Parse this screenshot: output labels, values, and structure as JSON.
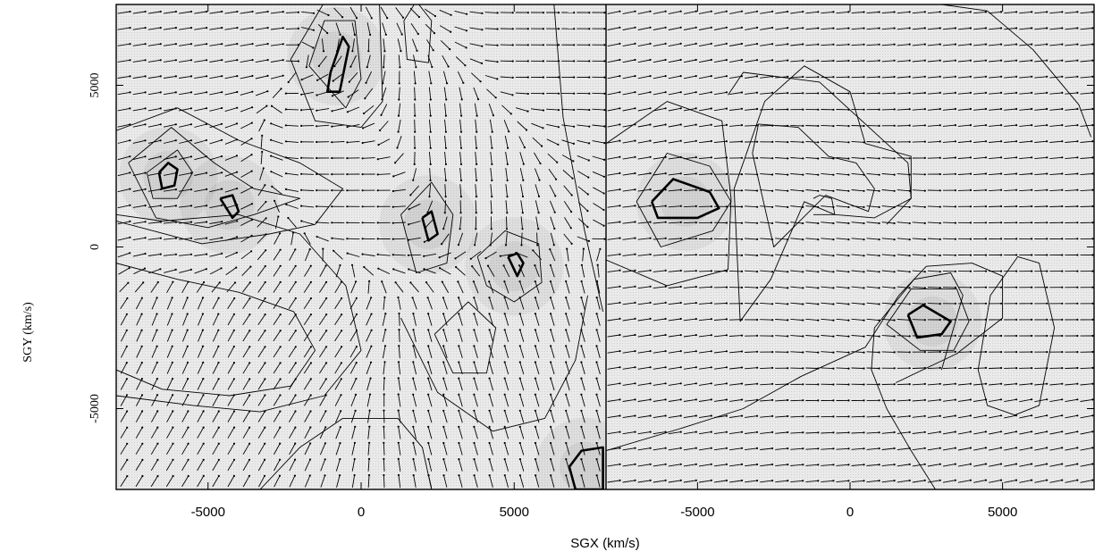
{
  "chart_data": {
    "type": "vector-field-contour",
    "xlabel": "SGX (km/s)",
    "ylabel": "SGY (km/s)",
    "shared_ylim": [
      -7500,
      7500
    ],
    "y_ticks": [
      -5000,
      0,
      5000
    ],
    "y_tick_labels": [
      "-5000",
      "0",
      "5000"
    ],
    "panels": [
      {
        "name": "left",
        "xlim": [
          -8000,
          8000
        ],
        "x_ticks": [
          -5000,
          0,
          5000
        ],
        "x_tick_labels": [
          "-5000",
          "0",
          "5000"
        ],
        "peaks": [
          {
            "x": -6300,
            "y": 2200
          },
          {
            "x": -4300,
            "y": 1300
          },
          {
            "x": -800,
            "y": 5900
          },
          {
            "x": 2200,
            "y": 700
          },
          {
            "x": 5000,
            "y": -600
          },
          {
            "x": 7300,
            "y": -6800
          }
        ],
        "contours": [
          {
            "x": [
              -6600,
              -6300,
              -6000,
              -6100,
              -6500,
              -6600
            ],
            "y": [
              2300,
              2600,
              2400,
              1900,
              1800,
              2300
            ],
            "bold": true
          },
          {
            "x": [
              -4600,
              -4200,
              -4000,
              -4200,
              -4600
            ],
            "y": [
              1500,
              1600,
              1100,
              900,
              1500
            ],
            "bold": true
          },
          {
            "x": [
              -1000,
              -600,
              -400,
              -700,
              -1100,
              -1000
            ],
            "y": [
              5400,
              6500,
              6200,
              4800,
              4800,
              5400
            ],
            "bold": true
          },
          {
            "x": [
              2000,
              2300,
              2500,
              2200,
              2000
            ],
            "y": [
              900,
              1100,
              400,
              200,
              900
            ],
            "bold": true
          },
          {
            "x": [
              4800,
              5100,
              5300,
              5100,
              4800
            ],
            "y": [
              -300,
              -200,
              -500,
              -900,
              -300
            ],
            "bold": true
          },
          {
            "x": [
              6800,
              7200,
              7900,
              7900,
              7000,
              6800
            ],
            "y": [
              -6800,
              -6300,
              -6200,
              -7500,
              -7500,
              -6800
            ],
            "bold": true
          },
          {
            "x": [
              -7000,
              -6000,
              -5500,
              -6000,
              -6800,
              -7000
            ],
            "y": [
              2300,
              3000,
              2300,
              1500,
              1500,
              2300
            ],
            "bold": false
          },
          {
            "x": [
              -7600,
              -6200,
              -4800,
              -3500,
              -2000,
              -3500,
              -5000,
              -6700,
              -7600
            ],
            "y": [
              2600,
              3700,
              2600,
              1800,
              1500,
              1000,
              600,
              900,
              2600
            ],
            "bold": false
          },
          {
            "x": [
              -8000,
              -6000,
              -4000,
              -2000,
              -600,
              -1500,
              -3000,
              -5200,
              -8000
            ],
            "y": [
              3600,
              4300,
              3300,
              2600,
              1800,
              700,
              400,
              100,
              800
            ],
            "bold": false
          },
          {
            "x": [
              -1700,
              -1200,
              -200,
              0,
              -500,
              -1700
            ],
            "y": [
              5600,
              7000,
              7000,
              5200,
              4300,
              5600
            ],
            "bold": false
          },
          {
            "x": [
              -2300,
              -1000,
              600,
              700,
              0,
              -1500,
              -2300
            ],
            "y": [
              5800,
              7900,
              7500,
              4500,
              3700,
              3900,
              5800
            ],
            "bold": false
          },
          {
            "x": [
              1300,
              2300,
              3000,
              2800,
              1800,
              1300
            ],
            "y": [
              1000,
              2000,
              1000,
              -500,
              -800,
              1000
            ],
            "bold": false
          },
          {
            "x": [
              3800,
              4700,
              5800,
              5900,
              5000,
              4100,
              3800
            ],
            "y": [
              -300,
              500,
              100,
              -1100,
              -1700,
              -1200,
              -300
            ],
            "bold": false
          },
          {
            "x": [
              2400,
              3500,
              4400,
              4100,
              3000,
              2400
            ],
            "y": [
              -2700,
              -1700,
              -2500,
              -3900,
              -3900,
              -2700
            ],
            "bold": false
          },
          {
            "x": [
              1400,
              1800,
              2300,
              2200,
              1500,
              1400
            ],
            "y": [
              7000,
              7600,
              7000,
              5700,
              5800,
              7000
            ],
            "bold": false
          },
          {
            "x": [
              -8000,
              -6000,
              -4000,
              -2200,
              -1500,
              -2300,
              -4300,
              -6500,
              -8000
            ],
            "y": [
              -500,
              -1000,
              -1400,
              -2000,
              -3200,
              -4300,
              -4600,
              -4400,
              -3800
            ],
            "bold": false
          },
          {
            "x": [
              -8000,
              -5500,
              -3300,
              -1200,
              0,
              -500,
              -2000,
              -4000,
              -6500,
              -8000
            ],
            "y": [
              -4600,
              -4900,
              -5100,
              -4600,
              -3200,
              -1200,
              400,
              1000,
              800,
              1000
            ],
            "bold": false
          },
          {
            "x": [
              -3300,
              -2000,
              -600,
              1200,
              2000,
              2300,
              1500,
              0,
              -2000,
              -3300
            ],
            "y": [
              -7500,
              -6200,
              -5300,
              -5300,
              -6200,
              -7500,
              -7500,
              -7500,
              -7500,
              -7500
            ],
            "bold": false
          },
          {
            "x": [
              6300,
              6600,
              7300,
              7900
            ],
            "y": [
              7500,
              4000,
              500,
              -2000
            ],
            "bold": false
          },
          {
            "x": [
              1300,
              2500,
              4300,
              6000,
              7000,
              7400
            ],
            "y": [
              -2200,
              -4500,
              -5700,
              -5300,
              -3500,
              -1500
            ],
            "bold": false
          }
        ],
        "field_samples": [
          {
            "x": -7000,
            "y": 7000,
            "u": 1.0,
            "v": 0.15
          },
          {
            "x": -6000,
            "y": 0,
            "u": 1.0,
            "v": 0.1
          },
          {
            "x": -6000,
            "y": -2000,
            "u": 0.4,
            "v": 1.0
          },
          {
            "x": -2000,
            "y": -2000,
            "u": 0.6,
            "v": 0.9
          },
          {
            "x": 0,
            "y": 1500,
            "u": -1.0,
            "v": 0.0
          },
          {
            "x": 3000,
            "y": 3000,
            "u": 0.1,
            "v": -1.0
          },
          {
            "x": 4000,
            "y": -4000,
            "u": -0.3,
            "v": 1.0
          },
          {
            "x": 6000,
            "y": 6000,
            "u": 1.0,
            "v": 0.0
          }
        ]
      },
      {
        "name": "right",
        "xlim": [
          -8000,
          8000
        ],
        "x_ticks": [
          -5000,
          0,
          5000
        ],
        "x_tick_labels": [
          "-5000",
          "0",
          "5000"
        ],
        "peaks": [
          {
            "x": -5400,
            "y": 1400
          },
          {
            "x": 2700,
            "y": -2300
          }
        ],
        "contours": [
          {
            "x": [
              -6500,
              -5800,
              -4600,
              -4300,
              -5000,
              -6300,
              -6500
            ],
            "y": [
              1400,
              2100,
              1700,
              1200,
              900,
              900,
              1400
            ],
            "bold": true
          },
          {
            "x": [
              1900,
              2400,
              3300,
              3000,
              2200,
              1900
            ],
            "y": [
              -2100,
              -1800,
              -2300,
              -2700,
              -2800,
              -2100
            ],
            "bold": true
          },
          {
            "x": [
              -7000,
              -6000,
              -4600,
              -3900,
              -4500,
              -6200,
              -7000
            ],
            "y": [
              1400,
              2900,
              2500,
              1400,
              500,
              0,
              1400
            ],
            "bold": false
          },
          {
            "x": [
              -8000,
              -6000,
              -4200,
              -3900,
              -4000,
              -6000,
              -8000
            ],
            "y": [
              3200,
              4500,
              3900,
              1500,
              -700,
              -1200,
              -400
            ],
            "bold": false
          },
          {
            "x": [
              -3200,
              -3000,
              -1700,
              -700,
              200,
              800,
              600,
              -800,
              -2500,
              -3200
            ],
            "y": [
              2900,
              3800,
              3700,
              2800,
              2600,
              1800,
              1100,
              1600,
              0,
              2900
            ],
            "bold": false
          },
          {
            "x": [
              -3800,
              -2800,
              -1500,
              0,
              500,
              2000,
              2000,
              800,
              -500,
              -1500,
              -2600,
              -3600,
              -3800
            ],
            "y": [
              1800,
              4500,
              5600,
              4800,
              3200,
              2800,
              1500,
              900,
              1000,
              1400,
              -1000,
              -2300,
              1800
            ],
            "bold": false
          },
          {
            "x": [
              -4000,
              -3500,
              -1000,
              1200,
              1900,
              2000,
              1200
            ],
            "y": [
              4700,
              5400,
              5100,
              3200,
              2600,
              1500,
              700
            ],
            "bold": false
          },
          {
            "x": [
              -1200,
              -1000,
              -600,
              -500,
              -1200
            ],
            "y": [
              1500,
              1600,
              1500,
              1000,
              1000
            ],
            "bold": false
          },
          {
            "x": [
              1200,
              2000,
              3500,
              3900,
              3400,
              2300,
              1200
            ],
            "y": [
              -2400,
              -1300,
              -1300,
              -2300,
              -3200,
              -3200,
              -2400
            ],
            "bold": false
          },
          {
            "x": [
              -8000,
              -5500,
              -3500,
              -1600,
              500,
              1600,
              2500,
              4000,
              5000,
              5000,
              3500,
              1500
            ],
            "y": [
              -6300,
              -5600,
              -5000,
              -4000,
              -3100,
              -1500,
              -600,
              -500,
              -900,
              -2200,
              -3300,
              -4200
            ],
            "bold": false
          },
          {
            "x": [
              4200,
              4600,
              5500,
              6200,
              6700,
              6200,
              5400,
              4500,
              4200
            ],
            "y": [
              -3800,
              -1500,
              -300,
              -500,
              -2500,
              -4900,
              -5200,
              -4900,
              -3800
            ],
            "bold": false
          },
          {
            "x": [
              2800,
              2000,
              1200,
              700,
              800,
              2100,
              3300,
              3700,
              3000
            ],
            "y": [
              -7500,
              -6300,
              -5000,
              -3800,
              -2500,
              -1000,
              -800,
              -1500,
              -3800
            ],
            "bold": false
          },
          {
            "x": [
              3000,
              4500,
              6000,
              7500,
              7900
            ],
            "y": [
              7500,
              7300,
              6100,
              4400,
              3400
            ],
            "bold": false
          }
        ],
        "field_samples": [
          {
            "x": -7000,
            "y": 7000,
            "u": 1.0,
            "v": 0.2
          },
          {
            "x": -7000,
            "y": -5000,
            "u": 1.0,
            "v": 0.15
          },
          {
            "x": 0,
            "y": 0,
            "u": 1.0,
            "v": -0.1
          },
          {
            "x": 5000,
            "y": 5000,
            "u": 1.0,
            "v": 0.1
          },
          {
            "x": 6000,
            "y": -2500,
            "u": 1.0,
            "v": 0.0
          },
          {
            "x": 6000,
            "y": -6000,
            "u": 1.0,
            "v": 0.2
          }
        ]
      }
    ]
  }
}
